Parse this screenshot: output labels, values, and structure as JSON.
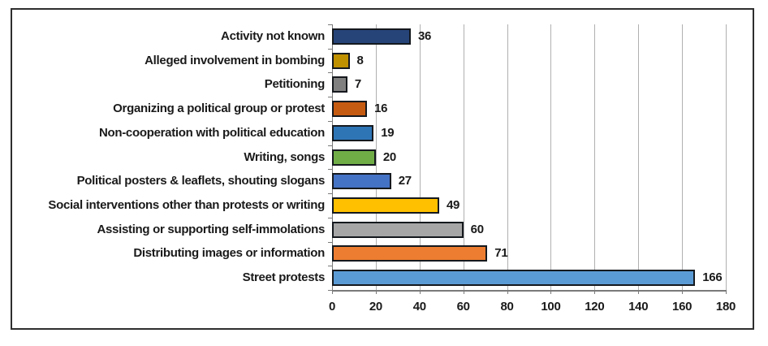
{
  "chart_data": {
    "type": "bar",
    "orientation": "horizontal",
    "title": "",
    "xlabel": "",
    "ylabel": "",
    "categories": [
      "Activity not known",
      "Alleged involvement in bombing",
      "Petitioning",
      "Organizing a political group or protest",
      "Non-cooperation with political education",
      "Writing, songs",
      "Political posters & leaflets, shouting slogans",
      "Social interventions other than protests or writing",
      "Assisting or supporting self-immolations",
      "Distributing images or information",
      "Street protests"
    ],
    "values": [
      36,
      8,
      7,
      16,
      19,
      20,
      27,
      49,
      60,
      71,
      166
    ],
    "bar_colors": [
      "#264478",
      "#BF9000",
      "#808080",
      "#C55A11",
      "#2E75B6",
      "#70AD47",
      "#4472C4",
      "#FFC000",
      "#A6A6A6",
      "#ED7D31",
      "#5B9BD5"
    ],
    "bar_border_color": "#15191e",
    "x_ticks": [
      "0",
      "20",
      "40",
      "60",
      "80",
      "100",
      "120",
      "140",
      "160",
      "180"
    ],
    "xlim": [
      0,
      180
    ],
    "grid": true,
    "legend": "none",
    "gridline_color": "#b0b0b0",
    "axis_color": "#7a7a7a",
    "text_color": "#1a1a1a",
    "background_color": "#ffffff",
    "frame_border_color": "#2e2e2e"
  }
}
